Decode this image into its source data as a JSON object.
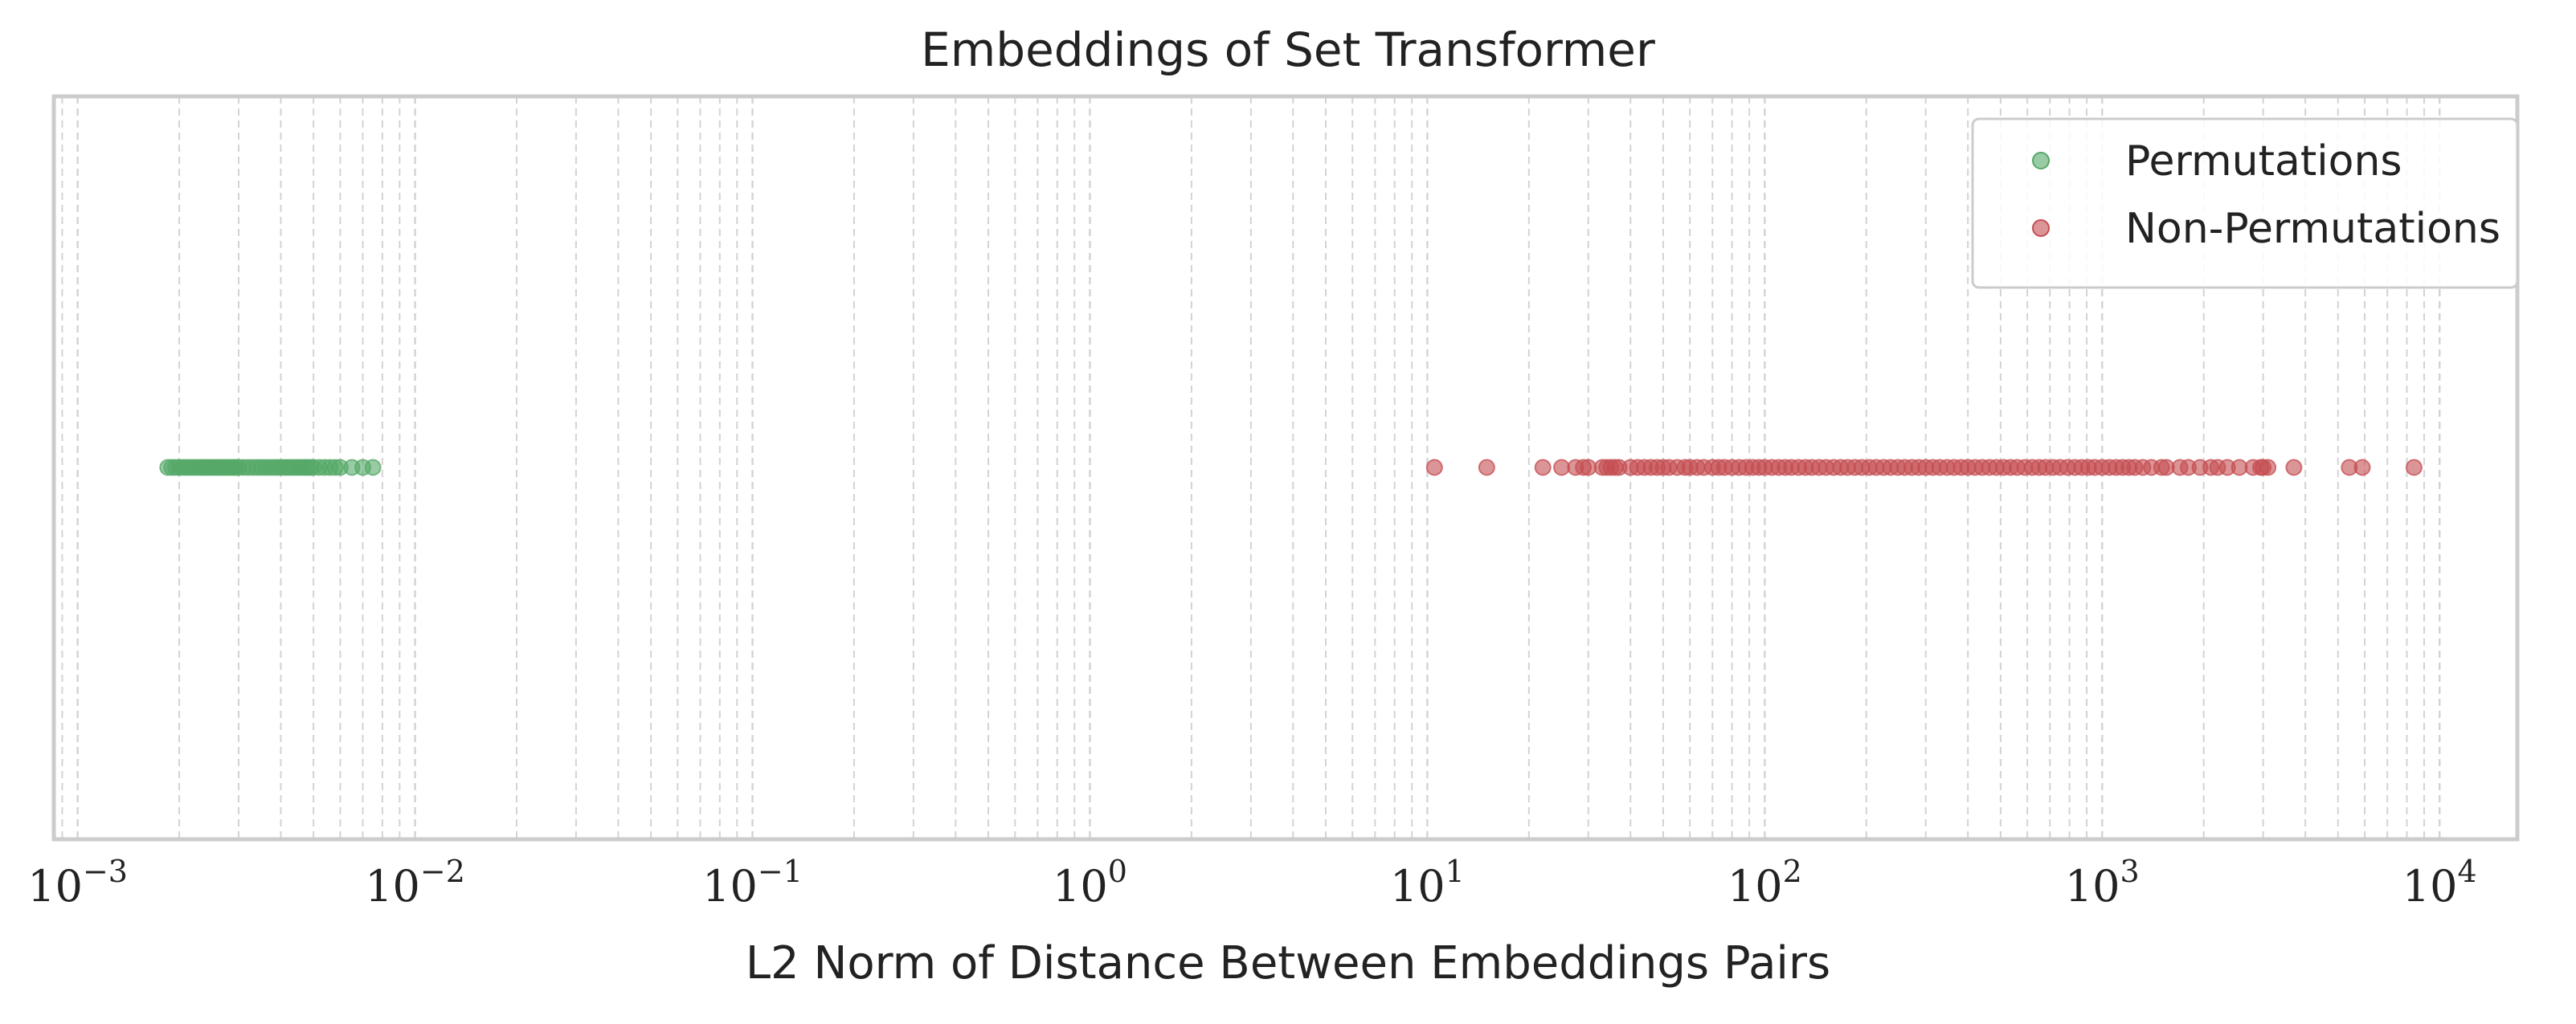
{
  "chart_data": {
    "type": "scatter",
    "title": "Embeddings of Set Transformer",
    "xlabel": "L2 Norm of Distance Between Embeddings Pairs",
    "ylabel": "",
    "xscale": "log",
    "xlim": [
      0.00085,
      17000
    ],
    "grid": {
      "x_major": true,
      "x_minor": true,
      "y": false,
      "style": "dashed"
    },
    "x_ticks": [
      {
        "base": "10",
        "exp": "−3",
        "value": 0.001
      },
      {
        "base": "10",
        "exp": "−2",
        "value": 0.01
      },
      {
        "base": "10",
        "exp": "−1",
        "value": 0.1
      },
      {
        "base": "10",
        "exp": "0",
        "value": 1
      },
      {
        "base": "10",
        "exp": "1",
        "value": 10
      },
      {
        "base": "10",
        "exp": "2",
        "value": 100
      },
      {
        "base": "10",
        "exp": "3",
        "value": 1000
      },
      {
        "base": "10",
        "exp": "4",
        "value": 10000
      }
    ],
    "legend": {
      "position": "top-right",
      "entries": [
        {
          "label": "Permutations",
          "color": "#55a868"
        },
        {
          "label": "Non-Permutations",
          "color": "#c44e52"
        }
      ]
    },
    "series": [
      {
        "name": "Permutations",
        "color": "#55a868",
        "points": [
          0.00185,
          0.0019,
          0.00195,
          0.002,
          0.00205,
          0.0021,
          0.00215,
          0.0022,
          0.00225,
          0.0023,
          0.00235,
          0.0024,
          0.00245,
          0.0025,
          0.00255,
          0.0026,
          0.00265,
          0.0027,
          0.00275,
          0.0028,
          0.00285,
          0.0029,
          0.00295,
          0.003,
          0.0031,
          0.0032,
          0.0033,
          0.0034,
          0.0035,
          0.0036,
          0.0037,
          0.0038,
          0.0039,
          0.004,
          0.0041,
          0.0042,
          0.0043,
          0.0044,
          0.0045,
          0.0046,
          0.0047,
          0.0048,
          0.0049,
          0.005,
          0.0052,
          0.0054,
          0.0056,
          0.0058,
          0.006,
          0.0065,
          0.007,
          0.0075
        ]
      },
      {
        "name": "Non-Permutations",
        "color": "#c44e52",
        "points": [
          10.5,
          15,
          22,
          25,
          27.5,
          29,
          30,
          33,
          34,
          35,
          36,
          37,
          40,
          42,
          44,
          46,
          48,
          50,
          52,
          55,
          58,
          60,
          63,
          66,
          70,
          73,
          76,
          80,
          84,
          88,
          92,
          96,
          100,
          105,
          110,
          115,
          120,
          126,
          132,
          138,
          145,
          152,
          160,
          168,
          176,
          185,
          194,
          204,
          214,
          225,
          236,
          248,
          260,
          273,
          286,
          300,
          315,
          330,
          347,
          364,
          382,
          400,
          420,
          441,
          463,
          486,
          510,
          535,
          560,
          590,
          620,
          650,
          680,
          715,
          750,
          790,
          830,
          870,
          910,
          950,
          1000,
          1050,
          1100,
          1150,
          1200,
          1250,
          1320,
          1400,
          1500,
          1550,
          1700,
          1800,
          1950,
          2100,
          2200,
          2350,
          2550,
          2800,
          2950,
          3000,
          3100,
          3700,
          5400,
          5900,
          8400
        ]
      }
    ]
  }
}
